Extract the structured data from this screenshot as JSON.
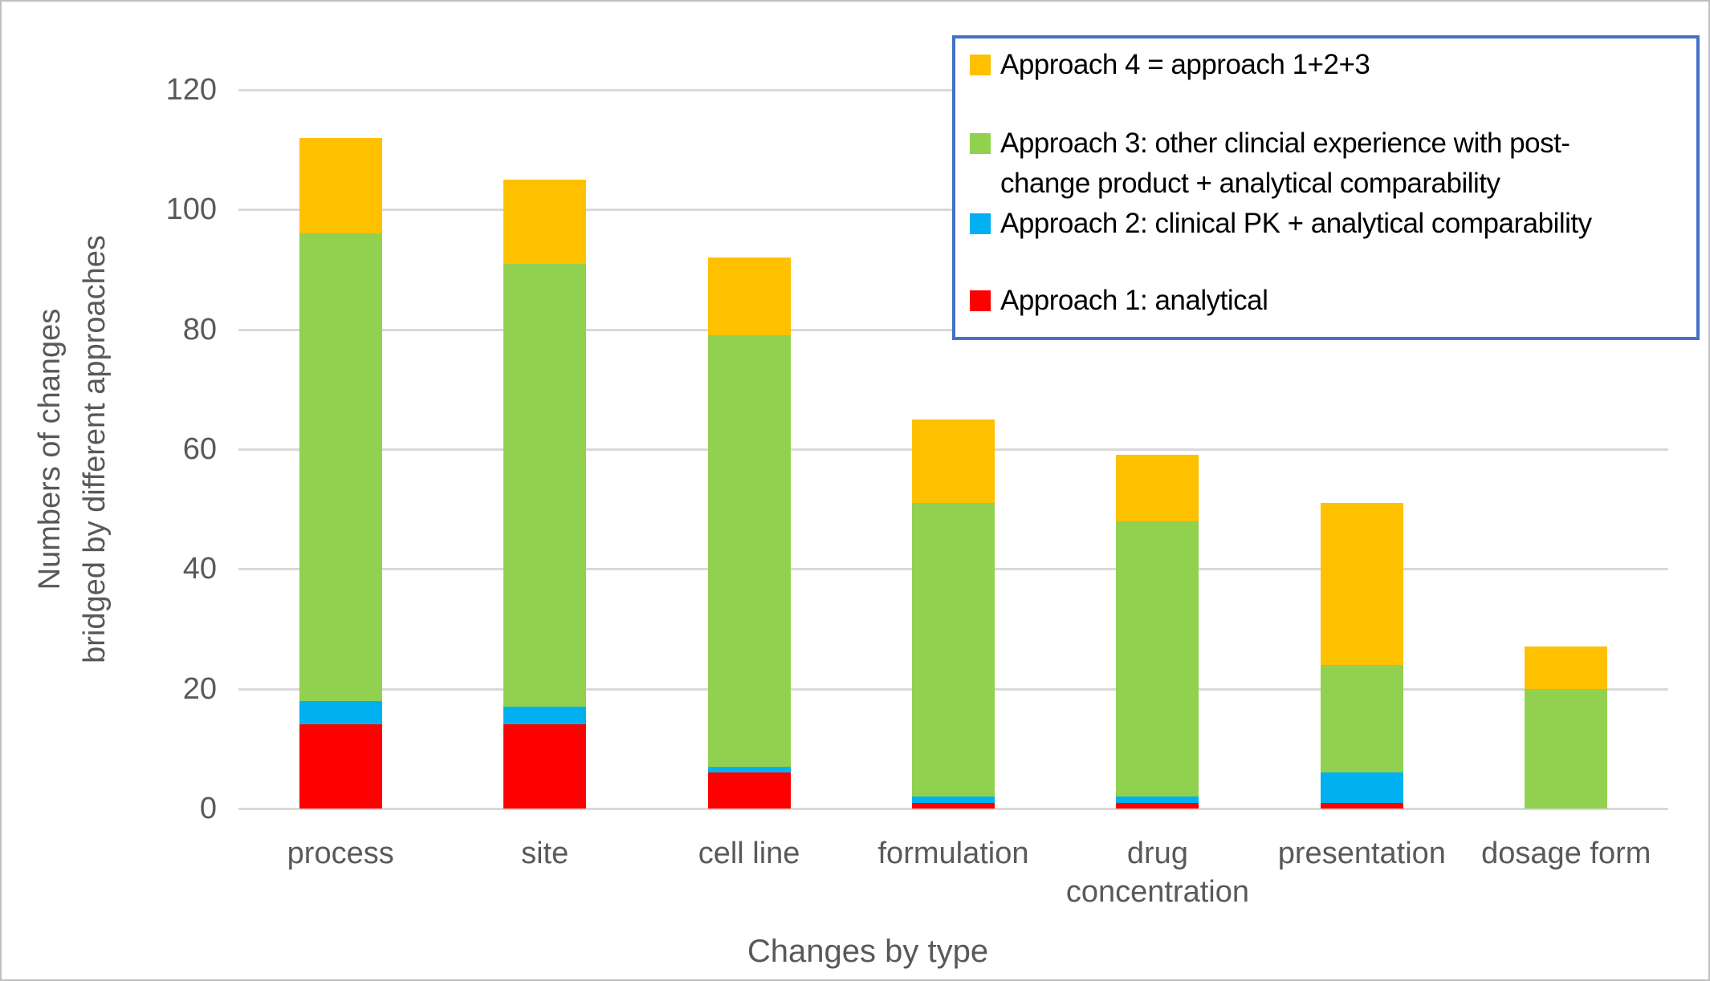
{
  "window": {
    "background": "#FFFFFF",
    "frame_border_color": "#BFBFBF"
  },
  "chart_data": {
    "type": "bar",
    "stacked": true,
    "title": "",
    "xlabel": "Changes by type",
    "ylabel": "Numbers of changes bridged by different approaches",
    "ylabel_lines": [
      "Numbers of changes",
      "bridged by different approaches"
    ],
    "ylim": [
      0,
      120
    ],
    "ytick_step": 20,
    "yticks": [
      0,
      20,
      40,
      60,
      80,
      100,
      120
    ],
    "grid": true,
    "gridline_color": "#D9D9D9",
    "axis_text_color": "#595959",
    "legend_position": "top-right",
    "categories": [
      "process",
      "site",
      "cell line",
      "formulation",
      "drug concentration",
      "presentation",
      "dosage form"
    ],
    "series": [
      {
        "name": "Approach 1: analytical",
        "color": "#FF0000",
        "values": [
          14,
          14,
          6,
          1,
          1,
          1,
          0
        ]
      },
      {
        "name": "Approach 2: clinical PK + analytical comparability",
        "color": "#00B0F0",
        "values": [
          4,
          3,
          1,
          1,
          1,
          5,
          0
        ]
      },
      {
        "name": "Approach 3: other clincial experience with post-change product + analytical comparability",
        "color": "#92D050",
        "values": [
          78,
          74,
          72,
          49,
          46,
          18,
          20
        ]
      },
      {
        "name": "Approach 4 = approach 1+2+3",
        "color": "#FFC000",
        "values": [
          16,
          14,
          13,
          14,
          11,
          27,
          7
        ]
      }
    ],
    "stack_totals": [
      112,
      105,
      92,
      65,
      59,
      51,
      27
    ]
  },
  "legend": {
    "border_color": "#4472C4",
    "entries": [
      {
        "color": "#FFC000",
        "lines": [
          "Approach 4 = approach 1+2+3"
        ]
      },
      {
        "color": "#92D050",
        "lines": [
          "Approach 3: other clincial experience with post-",
          "change product + analytical comparability"
        ]
      },
      {
        "color": "#00B0F0",
        "lines": [
          "Approach 2: clinical PK + analytical comparability"
        ]
      },
      {
        "color": "#FF0000",
        "lines": [
          "Approach 1: analytical"
        ]
      }
    ]
  }
}
